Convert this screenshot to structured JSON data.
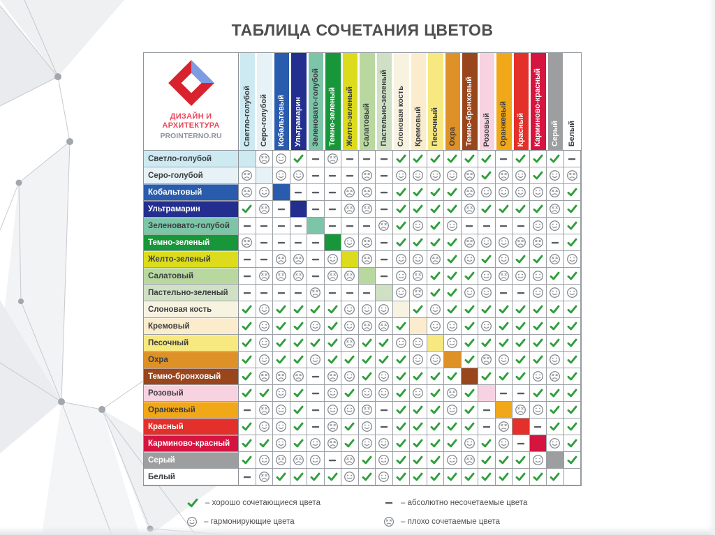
{
  "title": "ТАБЛИЦА СОЧЕТАНИЯ ЦВЕТОВ",
  "logo": {
    "line1": "ДИЗАЙН И",
    "line2": "АРХИТЕКТУРА",
    "line3": "PROINTERNO.RU"
  },
  "colors": [
    {
      "name": "Светло-голубой",
      "hex": "#cde9f2",
      "text": "dark"
    },
    {
      "name": "Серо-голубой",
      "hex": "#e6f2f5",
      "text": "dark"
    },
    {
      "name": "Кобальтовый",
      "hex": "#2a5cad",
      "text": "light"
    },
    {
      "name": "Ультрамарин",
      "hex": "#232e8f",
      "text": "light"
    },
    {
      "name": "Зеленовато-голубой",
      "hex": "#7cc5a8",
      "text": "dark"
    },
    {
      "name": "Темно-зеленый",
      "hex": "#18963a",
      "text": "light"
    },
    {
      "name": "Желто-зеленый",
      "hex": "#dcdc1d",
      "text": "dark"
    },
    {
      "name": "Салатовый",
      "hex": "#b9d89f",
      "text": "dark"
    },
    {
      "name": "Пастельно-зеленый",
      "hex": "#cfe0c4",
      "text": "dark"
    },
    {
      "name": "Слоновая кость",
      "hex": "#f8f3e1",
      "text": "dark"
    },
    {
      "name": "Кремовый",
      "hex": "#faeccc",
      "text": "dark"
    },
    {
      "name": "Песочный",
      "hex": "#f7e87f",
      "text": "dark"
    },
    {
      "name": "Охра",
      "hex": "#dd9126",
      "text": "dark"
    },
    {
      "name": "Темно-бронховый",
      "hex": "#99461d",
      "text": "light"
    },
    {
      "name": "Розовый",
      "hex": "#f7d2e0",
      "text": "dark"
    },
    {
      "name": "Оранжевый",
      "hex": "#f0a818",
      "text": "dark"
    },
    {
      "name": "Красный",
      "hex": "#e3302a",
      "text": "light"
    },
    {
      "name": "Карминово-красный",
      "hex": "#d51540",
      "text": "light"
    },
    {
      "name": "Серый",
      "hex": "#9c9ea0",
      "text": "light"
    },
    {
      "name": "Белый",
      "hex": "#ffffff",
      "text": "dark"
    }
  ],
  "matrix": [
    "XFSVDFDDDVVVVVVDVVVD",
    "FXSSDDDFDSSSSFVFSVSF",
    "FSXDDDFFDVVVVFSSSSFV",
    "VFDXDDFFDVVVVFVVVVFV",
    "DDDDXDDDFVSVSDDDDSSV",
    "FDDDDXSFDVVVVFSSFFDV",
    "DDFFDSXFDSSFVSVSVVFS",
    "DFFFDFFXDSFVVVSFSSVV",
    "DDDDFDDDXSFVVSSDDSSS",
    "VSVVVVSSSXVSVVVVVVVV",
    "VSVVSVSFFVXSSVSVVVVV",
    "VSVVVVFVVSSXSVVVVVVV",
    "VSVVSVVVVVSSXVFSVVSV",
    "VFFFDFSVSVVVVXVVVSFV",
    "VVSVDSVSSVSVFVXDDVVV",
    "DFSVDSSFDVVVSVDXFSVV",
    "VSSVDFVSDVVVVVDFXDVV",
    "VVSVSFVSSVVVVSVSDXSV",
    "VSFFSDFVSVVVSFVVVSXV",
    "DFVVVVSVSVVVVVVVVVVX"
  ],
  "symbol_legend": {
    "V": "check",
    "S": "smile",
    "F": "sad",
    "D": "dash",
    "X": "self-color"
  },
  "symbol_colors": {
    "check": "#2f9e3c",
    "face": "#82878d",
    "dash": "#595d62"
  },
  "legend": [
    {
      "icon": "check-icon",
      "label": "– хорошо сочетающиеся цвета"
    },
    {
      "icon": "smile-icon",
      "label": "– гармонирующие цвета"
    },
    {
      "icon": "dash-icon",
      "label": "– абсолютно несочетаемые цвета"
    },
    {
      "icon": "sad-icon",
      "label": "– плохо сочетаемые цвета"
    }
  ]
}
